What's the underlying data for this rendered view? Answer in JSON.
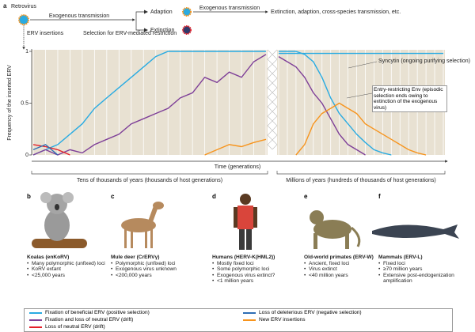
{
  "diagram": {
    "letter": "a",
    "retrovirus": "Retrovirus",
    "exo1": "Exogenous transmission",
    "adaption": "Adaption",
    "exo2": "Exogenous transmission",
    "outcomes": "Extinction, adaption, cross-species transmission, etc.",
    "extinction": "Extinction",
    "erv_insertions": "ERV insertions",
    "selection": "Selection for ERV-mediated restriction"
  },
  "chart_data": {
    "type": "line",
    "y_label": "Frequency of the inserted ERV",
    "x_label": "Time (generations)",
    "ylim": [
      0,
      1
    ],
    "yticks": [
      0,
      0.5,
      1
    ],
    "period_left": "Tens of thousands of years (thousands of host generations)",
    "period_right": "Millions of years (hundreds of thousands of host generations)",
    "annotations": [
      "Syncytin (ongoing purifying selection)",
      "Entry-restricting Env (episodic selection ends owing to extinction of the exogenous virus)"
    ],
    "categories": [
      null,
      null,
      null,
      null,
      null,
      null,
      null,
      null,
      null,
      null,
      null,
      null,
      null,
      null,
      null,
      null,
      null,
      null,
      null,
      null,
      null,
      null,
      null,
      null,
      null,
      null,
      null,
      null,
      null,
      null,
      null,
      null,
      null,
      null,
      null,
      null,
      null,
      null,
      null,
      null,
      null
    ],
    "series": [
      {
        "name": "Fixation of beneficial ERV (positive selection)",
        "color": "#29abe2",
        "values": [
          0,
          0.05,
          0.1,
          0.2,
          0.3,
          0.45,
          0.55,
          0.65,
          0.75,
          0.85,
          0.95,
          1,
          1,
          1,
          1,
          1,
          1,
          1,
          1,
          1,
          null,
          1,
          1,
          1,
          0.97,
          0.9,
          0.75,
          0.55,
          0.4,
          0.3,
          0.2,
          0.12,
          0.05,
          0.02,
          0,
          null,
          null,
          null,
          null,
          null,
          null
        ]
      },
      {
        "name": "Fixation and loss of neutral ERV (drift)",
        "color": "#7e3f98",
        "values": [
          0,
          0.05,
          0,
          0.05,
          0.02,
          0.1,
          0.15,
          0.2,
          0.3,
          0.35,
          0.4,
          0.45,
          0.55,
          0.6,
          0.75,
          0.7,
          0.8,
          0.75,
          0.9,
          0.97,
          null,
          0.95,
          0.9,
          0.85,
          0.75,
          0.6,
          0.5,
          0.35,
          0.2,
          0.1,
          0.05,
          0,
          null,
          null,
          null,
          null,
          null,
          null,
          null,
          null,
          null
        ]
      },
      {
        "name": "Loss of neutral ERV (drift)",
        "color": "#e4202a",
        "values": [
          0.1,
          0.08,
          0.05,
          0,
          null,
          null,
          null,
          null,
          null,
          null,
          null,
          null,
          null,
          null,
          null,
          null,
          null,
          null,
          null,
          null,
          null,
          null,
          null,
          null,
          null,
          null,
          null,
          null,
          null,
          null,
          null,
          null,
          null,
          null,
          null,
          null,
          null,
          null,
          null,
          null,
          null
        ]
      },
      {
        "name": "Loss of deleterious ERV (negative selection)",
        "color": "#2e6db4",
        "values": [
          0.05,
          0.1,
          0,
          null,
          null,
          null,
          null,
          null,
          null,
          null,
          null,
          null,
          null,
          null,
          null,
          null,
          null,
          null,
          null,
          null,
          null,
          null,
          null,
          null,
          null,
          null,
          null,
          null,
          null,
          null,
          null,
          null,
          null,
          null,
          null,
          null,
          null,
          null,
          null,
          null,
          null
        ]
      },
      {
        "name": "New ERV insertions",
        "color": "#f7941d",
        "values": [
          null,
          null,
          null,
          null,
          null,
          null,
          null,
          null,
          null,
          null,
          null,
          null,
          null,
          null,
          0,
          0.05,
          0.1,
          0.08,
          0.12,
          0.15,
          null,
          null,
          null,
          0,
          0.1,
          0.3,
          0.4,
          0.45,
          0.5,
          0.45,
          0.4,
          0.3,
          0.25,
          0.2,
          0.15,
          0.1,
          0.05,
          0.02,
          0,
          null,
          null
        ]
      },
      {
        "color": "#29abe2",
        "values": [
          null,
          null,
          null,
          null,
          null,
          null,
          null,
          null,
          null,
          null,
          null,
          null,
          null,
          null,
          null,
          null,
          null,
          null,
          null,
          null,
          null,
          0.98,
          0.98,
          0.98,
          0.98,
          0.98,
          0.98,
          0.98,
          0.98,
          0.98,
          0.98,
          0.98,
          0.98,
          0.98,
          0.98,
          0.98,
          0.98,
          0.98,
          0.98,
          0.98,
          0.98
        ]
      }
    ]
  },
  "panels": [
    {
      "letter": "b",
      "title": "Koalas (enKoRV)",
      "items": [
        "Many polymorphic (unfixed) loci",
        "KoRV extant",
        "<25,000 years"
      ]
    },
    {
      "letter": "c",
      "title": "Mule deer (CrERVγ)",
      "items": [
        "Polymorphic (unfixed) loci",
        "Exogenous virus unknown",
        "<200,000 years"
      ]
    },
    {
      "letter": "d",
      "title": "Humans (HERV-K(HML2))",
      "items": [
        "Mostly fixed loci",
        "Some polymorphic loci",
        "Exogenous virus extinct?",
        "<1 million years"
      ]
    },
    {
      "letter": "e",
      "title": "Old-world primates (ERV-W)",
      "items": [
        "Ancient, fixed loci",
        "Virus extinct",
        "<40 million years"
      ]
    },
    {
      "letter": "f",
      "title": "Mammals (ERV-L)",
      "items": [
        "Fixed loci",
        "≥70 million years",
        "Extensive post-endogenization amplification"
      ]
    }
  ]
}
